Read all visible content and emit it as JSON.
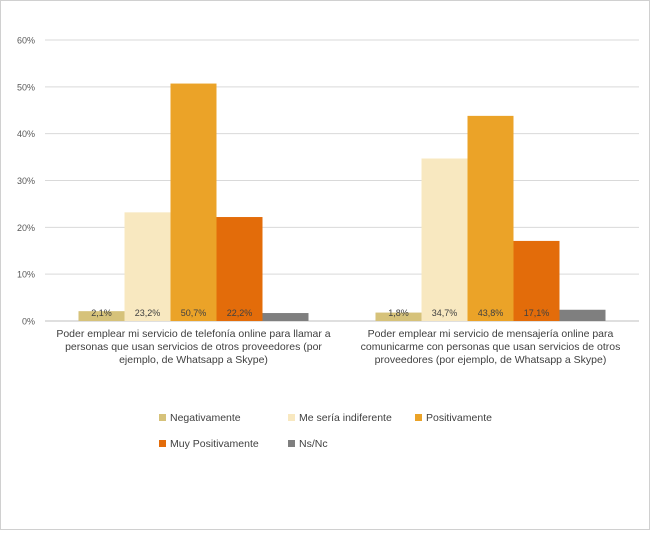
{
  "chart_data": {
    "type": "bar",
    "title": "",
    "xlabel": "",
    "ylabel": "",
    "ylim": [
      0,
      60
    ],
    "yticks": [
      "0%",
      "10%",
      "20%",
      "30%",
      "40%",
      "50%",
      "60%"
    ],
    "grid": true,
    "legend_position": "bottom",
    "categories": [
      [
        "Poder emplear mi servicio de telefonía online para llamar a",
        "personas que usan servicios de otros proveedores (por",
        "ejemplo, de Whatsapp a Skype)"
      ],
      [
        "Poder emplear mi servicio de mensajería online para",
        "comunicarme con personas que usan servicios de otros",
        "proveedores (por ejemplo, de Whatsapp a Skype)"
      ]
    ],
    "series": [
      {
        "name": "Negativamente",
        "color": "#d6c27a",
        "values": [
          2.1,
          1.8
        ],
        "labels": [
          "2,1%",
          "1,8%"
        ]
      },
      {
        "name": "Me sería indiferente",
        "color": "#f8e8c0",
        "values": [
          23.2,
          34.7
        ],
        "labels": [
          "23,2%",
          "34,7%"
        ]
      },
      {
        "name": "Positivamente",
        "color": "#eba328",
        "values": [
          50.7,
          43.8
        ],
        "labels": [
          "50,7%",
          "43,8%"
        ]
      },
      {
        "name": "Muy Positivamente",
        "color": "#e36c0a",
        "values": [
          22.2,
          17.1
        ],
        "labels": [
          "22,2%",
          "17,1%"
        ]
      },
      {
        "name": "Ns/Nc",
        "color": "#7f7f7f",
        "values": [
          1.7,
          2.4
        ],
        "labels": [
          "",
          ""
        ]
      }
    ]
  }
}
